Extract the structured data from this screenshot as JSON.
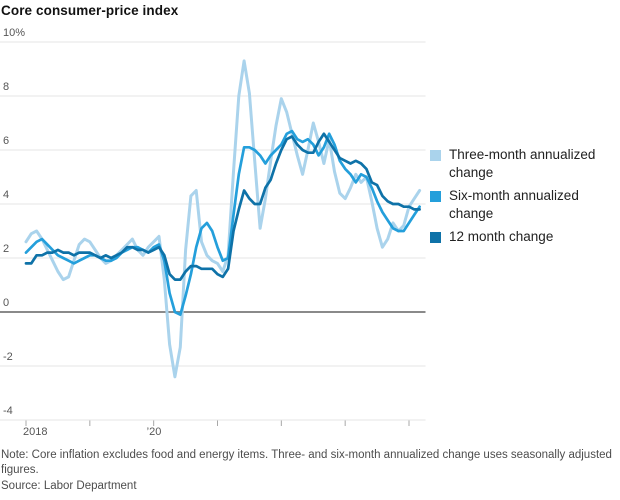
{
  "title": "Core consumer-price index",
  "footer": {
    "note": "Note: Core inflation excludes food and energy items. Three- and six-month annualized change uses seasonally adjusted figures.",
    "source": "Source: Labor Department"
  },
  "colors": {
    "three_month": "#aad3ec",
    "six_month": "#249fdb",
    "twelve_month": "#0e72a8",
    "gridline": "#e4e4e4",
    "zero_line": "#8a8a8a",
    "tick": "#a8a8a8",
    "axis_text": "#565656"
  },
  "chart_data": {
    "type": "line",
    "title": "Core consumer-price index",
    "x_unit": "months since Jan 2018",
    "x_range_note": "Jan 2018 through Mar 2024, monthly",
    "ylim": [
      -4,
      10
    ],
    "y_ticks": [
      10,
      8,
      6,
      4,
      2,
      0,
      -2,
      -4
    ],
    "y_top_tick_label": "10%",
    "x_tick_months": [
      0,
      12,
      24,
      36,
      48,
      60,
      72
    ],
    "x_tick_labels": {
      "0": "2018",
      "24": "’20"
    },
    "grid": "horizontal",
    "legend_position": "right",
    "series": [
      {
        "name": "Three-month annualized change",
        "color_key": "three_month",
        "stroke_width": 3,
        "values": [
          2.6,
          2.9,
          3.0,
          2.7,
          2.3,
          1.9,
          1.5,
          1.2,
          1.3,
          1.9,
          2.5,
          2.7,
          2.6,
          2.3,
          2.0,
          1.8,
          1.9,
          2.1,
          2.3,
          2.5,
          2.7,
          2.3,
          2.1,
          2.4,
          2.6,
          2.8,
          1.2,
          -1.2,
          -2.4,
          -1.3,
          2.3,
          4.3,
          4.5,
          2.6,
          2.1,
          1.9,
          1.8,
          1.5,
          2.1,
          5.2,
          8.0,
          9.3,
          8.1,
          5.6,
          3.1,
          4.2,
          5.6,
          6.9,
          7.9,
          7.4,
          6.6,
          5.8,
          5.1,
          6.0,
          7.0,
          6.3,
          5.5,
          6.4,
          5.2,
          4.4,
          4.2,
          4.6,
          5.1,
          4.8,
          5.0,
          4.1,
          3.1,
          2.4,
          2.7,
          3.3,
          3.0,
          3.2,
          3.9,
          4.2,
          4.5
        ]
      },
      {
        "name": "Six-month annualized change",
        "color_key": "six_month",
        "stroke_width": 2.7,
        "values": [
          2.2,
          2.4,
          2.6,
          2.7,
          2.5,
          2.3,
          2.1,
          2.0,
          1.9,
          1.8,
          1.9,
          2.0,
          2.1,
          2.1,
          2.0,
          1.9,
          1.9,
          2.0,
          2.2,
          2.3,
          2.4,
          2.4,
          2.3,
          2.2,
          2.4,
          2.5,
          1.9,
          0.7,
          0.0,
          -0.1,
          0.6,
          1.4,
          2.4,
          3.1,
          3.3,
          3.0,
          2.4,
          1.9,
          2.0,
          3.6,
          5.1,
          6.1,
          6.1,
          6.0,
          5.8,
          5.5,
          5.8,
          6.0,
          6.2,
          6.6,
          6.7,
          6.4,
          6.3,
          6.4,
          6.2,
          5.8,
          6.1,
          6.6,
          6.2,
          5.6,
          5.3,
          5.1,
          4.8,
          5.1,
          5.0,
          4.6,
          4.1,
          3.7,
          3.4,
          3.1,
          3.0,
          3.0,
          3.3,
          3.6,
          3.9
        ]
      },
      {
        "name": "12 month change",
        "color_key": "twelve_month",
        "stroke_width": 2.7,
        "values": [
          1.8,
          1.8,
          2.1,
          2.1,
          2.2,
          2.2,
          2.3,
          2.2,
          2.2,
          2.1,
          2.2,
          2.2,
          2.2,
          2.1,
          2.0,
          2.1,
          2.0,
          2.1,
          2.2,
          2.4,
          2.4,
          2.3,
          2.3,
          2.2,
          2.3,
          2.4,
          2.1,
          1.4,
          1.2,
          1.2,
          1.5,
          1.7,
          1.7,
          1.6,
          1.6,
          1.6,
          1.4,
          1.3,
          1.6,
          3.0,
          3.8,
          4.5,
          4.2,
          4.0,
          4.0,
          4.6,
          4.9,
          5.5,
          6.0,
          6.4,
          6.5,
          6.2,
          6.0,
          5.9,
          5.9,
          6.3,
          6.6,
          6.3,
          6.0,
          5.7,
          5.6,
          5.5,
          5.6,
          5.5,
          5.3,
          4.8,
          4.7,
          4.3,
          4.1,
          4.0,
          4.0,
          3.9,
          3.9,
          3.8,
          3.8
        ]
      }
    ]
  },
  "legend": {
    "items": [
      {
        "label": "Three-month annualized change",
        "color_key": "three_month"
      },
      {
        "label": "Six-month annualized change",
        "color_key": "six_month"
      },
      {
        "label": "12 month change",
        "color_key": "twelve_month"
      }
    ]
  }
}
